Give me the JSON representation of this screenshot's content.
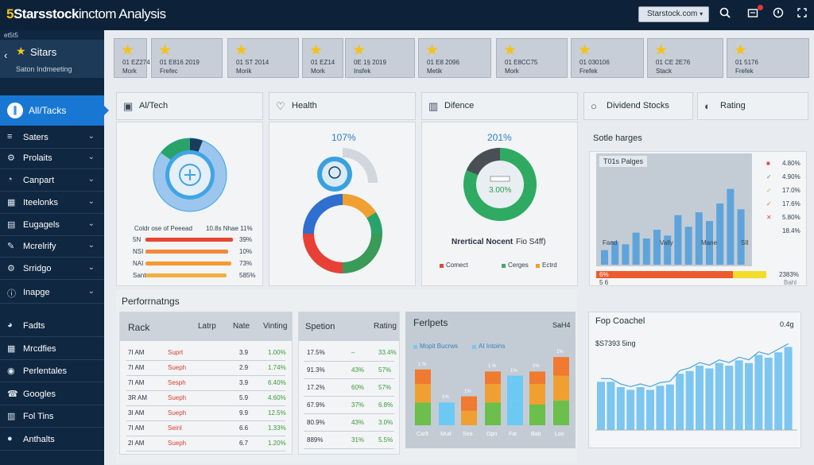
{
  "app": {
    "brand_num": "5",
    "brand_name": "Starsstock",
    "brand_rest": "inctom Analysis",
    "site_select": "Starstock.com",
    "icons": [
      "search-icon",
      "inbox-icon",
      "info-icon",
      "expand-icon"
    ]
  },
  "sidebar": {
    "small_label": "et5t5",
    "head_title": "Sitars",
    "head_sub": "Saton Indmeeting",
    "active": "All/Tacks",
    "items": [
      {
        "label": "Saters",
        "icon": "list-icon"
      },
      {
        "label": "Prolaits",
        "icon": "gear-icon"
      },
      {
        "label": "Canpart",
        "icon": "gauge-icon"
      },
      {
        "label": "Iteelonks",
        "icon": "grid-icon"
      },
      {
        "label": "Eugagels",
        "icon": "fund-icon"
      },
      {
        "label": "Mcrelrify",
        "icon": "pen-icon"
      },
      {
        "label": "Srridgo",
        "icon": "settings-icon"
      },
      {
        "label": "Inapge",
        "icon": "info-icon"
      },
      {
        "label": "Fadts",
        "icon": "pie-icon"
      },
      {
        "label": "Mrcdfies",
        "icon": "apps-icon"
      },
      {
        "label": "Perlentales",
        "icon": "people-icon"
      },
      {
        "label": "Googles",
        "icon": "phone-icon"
      },
      {
        "label": "Fol Tins",
        "icon": "chart-icon"
      },
      {
        "label": "Anthalts",
        "icon": "user-icon"
      }
    ]
  },
  "star_cards": [
    {
      "c1": "01 EZ274",
      "c2": "Mork"
    },
    {
      "c1": "01 E816 2019",
      "c2": "Frefec"
    },
    {
      "c1": "01 ST 2014",
      "c2": "Morik"
    },
    {
      "c1": "01 EZ14",
      "c2": "Mork"
    },
    {
      "c1": "0E 1§ 2019",
      "c2": "Insfek"
    },
    {
      "c1": "01 E8 2096",
      "c2": "Metik"
    },
    {
      "c1": "01 E8CC75",
      "c2": "Mork"
    },
    {
      "c1": "01 030106",
      "c2": "Frefek"
    },
    {
      "c1": "01 CE 2E76",
      "c2": "Stack"
    },
    {
      "c1": "01 5176",
      "c2": "Frefek"
    }
  ],
  "tabs": [
    {
      "label": "Al/Tech",
      "icon": "image-icon"
    },
    {
      "label": "Health",
      "icon": "heart-icon"
    },
    {
      "label": "Difence",
      "icon": "chart-icon"
    },
    {
      "label": "Dividend Stocks",
      "icon": "person-icon"
    },
    {
      "label": "Rating",
      "icon": "toggle-icon"
    }
  ],
  "ai_panel": {
    "bars_header": "Coldr ose of Peeead",
    "bars_header2": "10.8s Nhae 11%",
    "rows": [
      {
        "name": "5N",
        "val": "39%",
        "pct": 0.92,
        "color": "#e8452f"
      },
      {
        "name": "NSI",
        "val": "10%",
        "pct": 0.87,
        "color": "#f08a3a"
      },
      {
        "name": "NAI",
        "val": "73%",
        "pct": 0.9,
        "color": "#f59a2e"
      },
      {
        "name": "Sant",
        "val": "585%",
        "pct": 0.85,
        "color": "#f0b040"
      }
    ]
  },
  "health_panel": {
    "pct": "107%"
  },
  "defence_panel": {
    "pct": "201%",
    "inner": "3.00%",
    "caption_a": "Nrertical Nocent",
    "caption_b": "Fio S4ff)",
    "legend": [
      {
        "label": "Comect",
        "color": "#e04a3a"
      },
      {
        "label": "Cerges",
        "color": "#47a866"
      },
      {
        "label": "Ectrd",
        "color": "#f0a030"
      }
    ]
  },
  "dividend_panel": {
    "title": "Sotle harges",
    "inner_title": "T01s Palges",
    "legend": [
      {
        "mark": "■",
        "color": "#e04a3a",
        "val": "4.80%"
      },
      {
        "mark": "✓",
        "color": "#3a9e4a",
        "val": "4.90%"
      },
      {
        "mark": "✓",
        "color": "#b8c020",
        "val": "17.0%"
      },
      {
        "mark": "✓",
        "color": "#e07030",
        "val": "17.6%"
      },
      {
        "mark": "✕",
        "color": "#e04a3a",
        "val": "5.80%"
      },
      {
        "mark": "",
        "color": "#333",
        "val": "18.4%"
      }
    ],
    "xlabels": [
      "Fand",
      "Vally",
      "Mane",
      "SII"
    ],
    "bottom_left": "6%",
    "bottom_left2": "5 6",
    "bottom_right": "2383%",
    "bottom_right2": "Bahl"
  },
  "performance": {
    "title": "Perforrnatngs",
    "table1": {
      "headers": [
        "Rack",
        "Latrp",
        "Nate",
        "Vinting"
      ],
      "rows": [
        [
          "7I AM",
          "Suprt",
          "3.9",
          "1.00%"
        ],
        [
          "7I AM",
          "Sueph",
          "2.9",
          "1.74%"
        ],
        [
          "7I AM",
          "Sesph",
          "3.9",
          "6.40%"
        ],
        [
          "3R AM",
          "Sueph",
          "5.9",
          "4.60%"
        ],
        [
          "3I AM",
          "Sueph",
          "9.9",
          "12.5%"
        ],
        [
          "7I AM",
          "Seinl",
          "6.6",
          "1.33%"
        ],
        [
          "2I AM",
          "Sueph",
          "6.7",
          "1.20%"
        ]
      ]
    },
    "table2": {
      "headers": [
        "Spetion",
        "Rating"
      ],
      "rows": [
        [
          "17.5%",
          "–",
          "33.4%"
        ],
        [
          "91.3%",
          "43%",
          "57%"
        ],
        [
          "17.2%",
          "60%",
          "57%"
        ],
        [
          "67.9%",
          "37%",
          "6.8%"
        ],
        [
          "80.9%",
          "43%",
          "3.0%"
        ],
        [
          "889%",
          "31%",
          "5.5%"
        ]
      ]
    }
  },
  "fergets": {
    "title": "Ferlpets",
    "right": "SaH4",
    "legend": [
      "Mopit Bucrws",
      "AI Intoins"
    ],
    "xlabels": [
      "Carlt",
      "Mud",
      "Sea",
      "Opn",
      "Fat",
      "Bab",
      "Loo"
    ],
    "toplabels": [
      "1 %",
      "1%",
      "1%",
      "1 %",
      "1%",
      "1%",
      "1%"
    ]
  },
  "fop": {
    "title": "Fop Coachel",
    "right": "0.4g",
    "sub": "$S7393 5ing"
  },
  "chart_data": [
    {
      "type": "bar",
      "title": "Sotle harges",
      "categories": [
        "1",
        "2",
        "3",
        "4",
        "5",
        "6",
        "7",
        "8",
        "9",
        "10",
        "11",
        "12",
        "13",
        "14"
      ],
      "values": [
        10,
        16,
        14,
        22,
        18,
        24,
        20,
        34,
        26,
        36,
        30,
        42,
        52,
        38
      ],
      "ylim": [
        0,
        60
      ]
    },
    {
      "type": "bar",
      "title": "Ferlpets",
      "categories": [
        "Carlt",
        "Mud",
        "Sea",
        "Opn",
        "Fat",
        "Bab",
        "Loo"
      ],
      "series": [
        {
          "name": "Mopit Bucrws",
          "values": [
            22,
            22,
            14,
            22,
            24,
            20,
            24
          ]
        },
        {
          "name": "AI Intoins",
          "values": [
            18,
            0,
            8,
            18,
            20,
            20,
            24
          ]
        },
        {
          "values": [
            14,
            0,
            6,
            12,
            4,
            12,
            18
          ]
        }
      ],
      "ylim": [
        0,
        100
      ]
    },
    {
      "type": "bar",
      "title": "Fop Coachel",
      "categories": [
        "1",
        "2",
        "3",
        "4",
        "5",
        "6",
        "7",
        "8",
        "9",
        "10",
        "11",
        "12",
        "13",
        "14",
        "15",
        "16",
        "17",
        "18",
        "19",
        "20"
      ],
      "values": [
        36,
        36,
        32,
        30,
        32,
        30,
        33,
        34,
        42,
        44,
        48,
        46,
        50,
        48,
        52,
        50,
        56,
        54,
        58,
        62
      ],
      "ylim": [
        0,
        70
      ]
    }
  ]
}
